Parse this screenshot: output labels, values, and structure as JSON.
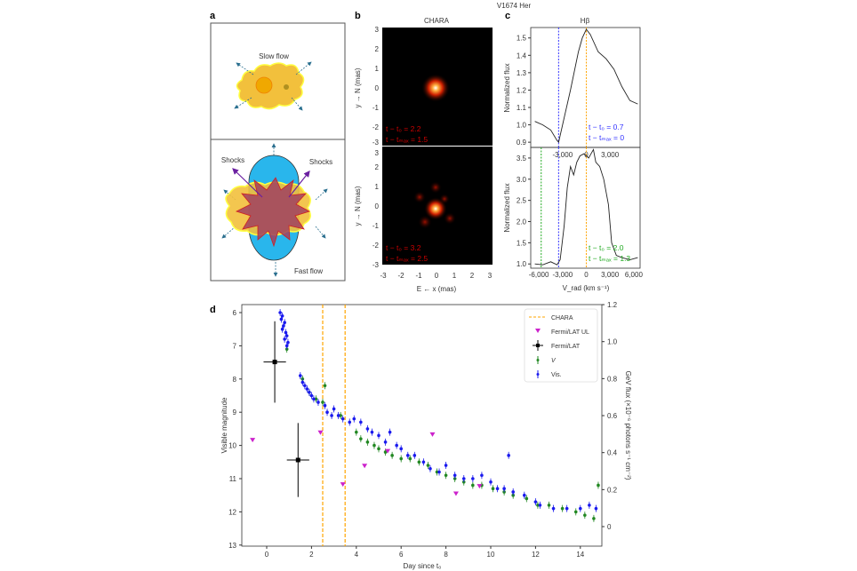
{
  "figure_title": "V1674 Her",
  "panel_a": {
    "label": "a",
    "slow_flow": "Slow flow",
    "shocks_left": "Shocks",
    "shocks_right": "Shocks",
    "fast_flow": "Fast flow"
  },
  "panel_b": {
    "label": "b",
    "title": "CHARA",
    "ylabel": "y → N (mas)",
    "xlabel": "E ← x (mas)",
    "ticks": [
      "-3",
      "-2",
      "-1",
      "0",
      "1",
      "2",
      "3"
    ],
    "top_ann1": "t − t₀ = 2.2",
    "top_ann2": "t − tₘₐₓ = 1.5",
    "bot_ann1": "t − t₀ = 3.2",
    "bot_ann2": "t − tₘₐₓ = 2.5",
    "ann_color": "#cc0000"
  },
  "chart_data": [
    {
      "type": "line",
      "panel": "c-top",
      "title": "Hβ",
      "ylabel": "Normalized flux",
      "ylim": [
        0.87,
        1.56
      ],
      "xlim": [
        -6500,
        6500
      ],
      "yticks": [
        "0.9",
        "1.0",
        "1.1",
        "1.2",
        "1.3",
        "1.4",
        "1.5"
      ],
      "xticks": [
        "-3,000",
        "0",
        "3,000"
      ],
      "vlines": [
        {
          "x": -3500,
          "color": "#3333ff"
        },
        {
          "x": 0,
          "color": "#ffa500"
        }
      ],
      "annotation": [
        "t − t₀ = 0.7",
        "t − tₘₐₓ = 0"
      ],
      "annotation_color": "#3333ff",
      "v": [
        -6500,
        -5500,
        -4500,
        -3700,
        -3500,
        -3000,
        -2000,
        -1000,
        -500,
        0,
        500,
        1500,
        2500,
        3500,
        4500,
        5500,
        6500
      ],
      "flux": [
        1.02,
        1.0,
        0.97,
        0.91,
        0.9,
        1.0,
        1.2,
        1.42,
        1.5,
        1.55,
        1.52,
        1.42,
        1.38,
        1.32,
        1.22,
        1.14,
        1.12
      ]
    },
    {
      "type": "line",
      "panel": "c-bottom",
      "ylabel": "Normalized flux",
      "xlabel": "V_rad (km s⁻¹)",
      "ylim": [
        0.9,
        3.75
      ],
      "xlim": [
        -6500,
        6500
      ],
      "yticks": [
        "1.0",
        "1.5",
        "2.0",
        "2.5",
        "3.0",
        "3.5"
      ],
      "xticks": [
        "-6,000",
        "-3,000",
        "0",
        "3,000",
        "6,000"
      ],
      "vlines": [
        {
          "x": -5700,
          "color": "#22aa22"
        },
        {
          "x": -3500,
          "color": "#3333ff"
        },
        {
          "x": 0,
          "color": "#ffa500"
        }
      ],
      "annotation": [
        "t − t₀ = 2.0",
        "t − tₘₐₓ = 1.3"
      ],
      "annotation_color": "#22aa22",
      "v": [
        -6500,
        -5500,
        -4500,
        -3700,
        -3300,
        -2800,
        -2400,
        -2000,
        -1600,
        -1200,
        -800,
        -300,
        0,
        300,
        600,
        900,
        1200,
        1700,
        2200,
        2800,
        3200,
        3800,
        4500,
        5500,
        6500
      ],
      "flux": [
        1.0,
        0.98,
        1.05,
        0.98,
        1.1,
        1.9,
        2.8,
        3.3,
        3.1,
        3.4,
        3.55,
        3.6,
        3.55,
        3.5,
        3.6,
        3.7,
        3.4,
        3.3,
        3.0,
        2.4,
        1.5,
        1.2,
        1.15,
        1.1,
        1.15
      ]
    },
    {
      "type": "scatter",
      "panel": "d",
      "label": "d",
      "xlabel": "Day since t₀",
      "ylabel": "Visible magnitude",
      "y2label": "GeV flux (×10⁻⁶ photons s⁻¹ cm⁻²)",
      "xlim": [
        -1.1,
        15.1
      ],
      "ylim": [
        13,
        5.75
      ],
      "y2lim": [
        -0.06,
        1.2
      ],
      "xticks": [
        "0",
        "2",
        "4",
        "6",
        "8",
        "10",
        "12",
        "14"
      ],
      "yticks": [
        "6",
        "7",
        "8",
        "9",
        "10",
        "11",
        "12",
        "13"
      ],
      "y2ticks": [
        "0",
        "0.2",
        "0.4",
        "0.6",
        "0.8",
        "1.0",
        "1.2"
      ],
      "legend_position": "top-right",
      "legend": [
        "CHARA",
        "Fermi/LAT UL",
        "Fermi/LAT",
        "V",
        "Vis."
      ],
      "colors": {
        "chara": "#ffa500",
        "ul": "#cc22cc",
        "lat": "#000000",
        "v": "#228822",
        "vis": "#1a1aee"
      },
      "chara_days": [
        2.5,
        3.5
      ],
      "fermi_ul": [
        [
          -0.63,
          0.47
        ],
        [
          2.4,
          0.51
        ],
        [
          3.4,
          0.23
        ],
        [
          4.37,
          0.33
        ],
        [
          5.4,
          0.41
        ],
        [
          7.4,
          0.5
        ],
        [
          8.45,
          0.18
        ],
        [
          9.5,
          0.22
        ]
      ],
      "fermi_lat": [
        [
          0.36,
          0.89,
          0.5,
          0.22
        ],
        [
          1.4,
          0.36,
          0.5,
          0.2
        ]
      ],
      "V": [
        [
          0.9,
          7.1
        ],
        [
          1.6,
          8.0
        ],
        [
          1.9,
          8.4
        ],
        [
          2.2,
          8.6
        ],
        [
          2.5,
          8.7
        ],
        [
          2.6,
          8.2
        ],
        [
          3.3,
          9.1
        ],
        [
          4.0,
          9.6
        ],
        [
          4.2,
          9.8
        ],
        [
          4.5,
          9.9
        ],
        [
          4.8,
          10.0
        ],
        [
          5.0,
          10.1
        ],
        [
          5.3,
          10.2
        ],
        [
          5.6,
          10.3
        ],
        [
          6.0,
          10.4
        ],
        [
          6.4,
          10.4
        ],
        [
          6.8,
          10.5
        ],
        [
          7.2,
          10.6
        ],
        [
          7.6,
          10.8
        ],
        [
          8.0,
          10.9
        ],
        [
          8.4,
          11.0
        ],
        [
          8.8,
          11.1
        ],
        [
          9.2,
          11.2
        ],
        [
          9.6,
          11.2
        ],
        [
          10.1,
          11.3
        ],
        [
          10.6,
          11.4
        ],
        [
          11.0,
          11.5
        ],
        [
          11.6,
          11.6
        ],
        [
          12.1,
          11.8
        ],
        [
          12.6,
          11.8
        ],
        [
          13.2,
          11.9
        ],
        [
          13.8,
          12.0
        ],
        [
          14.2,
          12.1
        ],
        [
          14.6,
          12.2
        ],
        [
          14.8,
          11.2
        ]
      ],
      "Vis": [
        [
          0.6,
          6.0
        ],
        [
          0.65,
          6.2
        ],
        [
          0.7,
          6.1
        ],
        [
          0.75,
          6.4
        ],
        [
          0.8,
          6.3
        ],
        [
          0.85,
          6.6
        ],
        [
          0.9,
          6.7
        ],
        [
          0.95,
          6.9
        ],
        [
          0.7,
          6.5
        ],
        [
          0.8,
          6.8
        ],
        [
          0.9,
          7.0
        ],
        [
          1.5,
          7.9
        ],
        [
          1.6,
          8.1
        ],
        [
          1.7,
          8.2
        ],
        [
          1.8,
          8.3
        ],
        [
          1.9,
          8.4
        ],
        [
          2.0,
          8.5
        ],
        [
          2.1,
          8.6
        ],
        [
          2.3,
          8.7
        ],
        [
          2.6,
          8.8
        ],
        [
          2.7,
          9.0
        ],
        [
          2.9,
          9.1
        ],
        [
          3.0,
          8.9
        ],
        [
          3.2,
          9.1
        ],
        [
          3.4,
          9.2
        ],
        [
          3.7,
          9.3
        ],
        [
          3.9,
          9.2
        ],
        [
          4.2,
          9.3
        ],
        [
          4.5,
          9.5
        ],
        [
          4.7,
          9.6
        ],
        [
          5.0,
          9.7
        ],
        [
          5.3,
          9.9
        ],
        [
          5.5,
          9.6
        ],
        [
          5.8,
          10.0
        ],
        [
          6.0,
          10.1
        ],
        [
          6.3,
          10.3
        ],
        [
          6.6,
          10.3
        ],
        [
          7.0,
          10.5
        ],
        [
          7.3,
          10.7
        ],
        [
          7.7,
          10.8
        ],
        [
          8.0,
          10.6
        ],
        [
          8.4,
          10.9
        ],
        [
          8.8,
          11.0
        ],
        [
          9.2,
          11.0
        ],
        [
          9.6,
          10.9
        ],
        [
          10.0,
          11.1
        ],
        [
          10.3,
          11.3
        ],
        [
          10.6,
          11.3
        ],
        [
          10.8,
          10.3
        ],
        [
          11.0,
          11.4
        ],
        [
          11.5,
          11.5
        ],
        [
          12.0,
          11.7
        ],
        [
          12.2,
          11.8
        ],
        [
          12.8,
          11.9
        ],
        [
          13.4,
          11.9
        ],
        [
          14.0,
          11.9
        ],
        [
          14.4,
          11.8
        ],
        [
          14.7,
          11.9
        ]
      ]
    }
  ]
}
